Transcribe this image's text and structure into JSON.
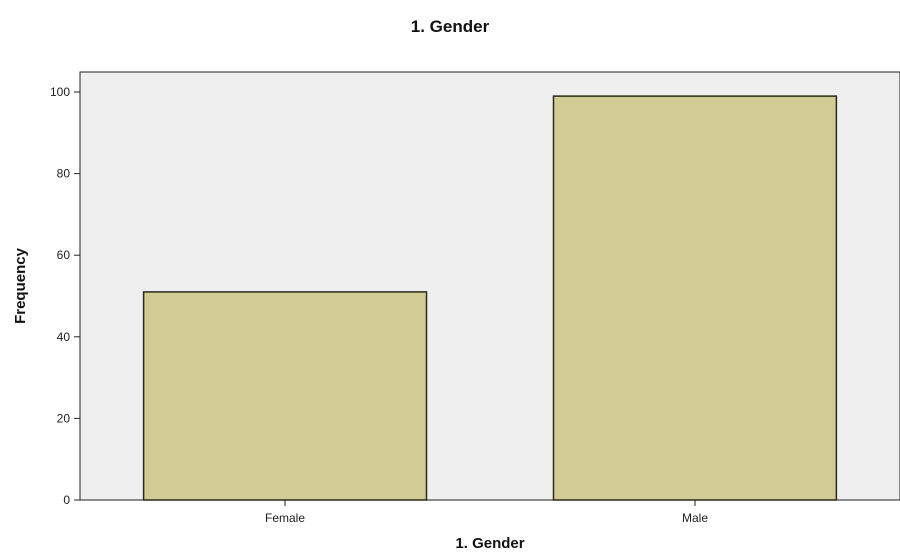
{
  "chart_data": {
    "type": "bar",
    "title": "1. Gender",
    "xlabel": "1. Gender",
    "ylabel": "Frequency",
    "categories": [
      "Female",
      "Male"
    ],
    "values": [
      51,
      99
    ],
    "ylim": [
      0,
      100
    ],
    "yticks": [
      0,
      20,
      40,
      60,
      80,
      100
    ],
    "grid": false,
    "legend": "none",
    "colors": {
      "plot_background": "#efefef",
      "bar_fill": "#d1cc94",
      "bar_stroke": "#2a2a1a",
      "axis": "#222222"
    }
  }
}
